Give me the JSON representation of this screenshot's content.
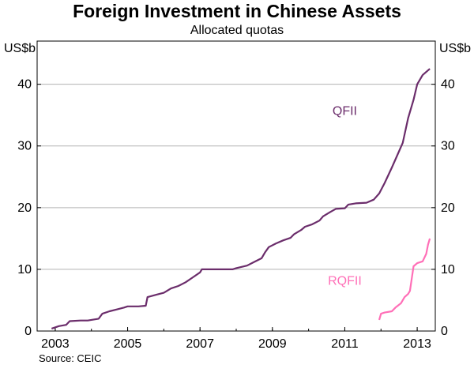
{
  "chart_data": {
    "type": "line",
    "title": "Foreign Investment in Chinese Assets",
    "subtitle": "Allocated quotas",
    "ylabel_left": "US$b",
    "ylabel_right": "US$b",
    "source": "Source: CEIC",
    "xlim": [
      2002.5,
      2013.5
    ],
    "ylim": [
      0,
      47
    ],
    "yticks": [
      0,
      10,
      20,
      30,
      40
    ],
    "xticks": [
      {
        "label": "2003",
        "value": 2003.0
      },
      {
        "label": "2005",
        "value": 2005.0
      },
      {
        "label": "2007",
        "value": 2007.0
      },
      {
        "label": "2009",
        "value": 2009.0
      },
      {
        "label": "2011",
        "value": 2011.0
      },
      {
        "label": "2013",
        "value": 2013.0
      }
    ],
    "grid": true,
    "series": [
      {
        "name": "QFII",
        "color": "#6b2d6b",
        "label_at": [
          2011.0,
          35.0
        ],
        "points": [
          [
            2002.9,
            0.4
          ],
          [
            2003.1,
            0.8
          ],
          [
            2003.3,
            1.0
          ],
          [
            2003.4,
            1.6
          ],
          [
            2003.7,
            1.7
          ],
          [
            2003.9,
            1.7
          ],
          [
            2004.0,
            1.8
          ],
          [
            2004.2,
            2.0
          ],
          [
            2004.3,
            2.8
          ],
          [
            2004.5,
            3.2
          ],
          [
            2004.7,
            3.5
          ],
          [
            2004.9,
            3.8
          ],
          [
            2005.0,
            4.0
          ],
          [
            2005.3,
            4.0
          ],
          [
            2005.5,
            4.1
          ],
          [
            2005.55,
            5.5
          ],
          [
            2005.8,
            5.9
          ],
          [
            2006.0,
            6.2
          ],
          [
            2006.2,
            6.9
          ],
          [
            2006.4,
            7.3
          ],
          [
            2006.6,
            7.9
          ],
          [
            2006.8,
            8.7
          ],
          [
            2007.0,
            9.5
          ],
          [
            2007.05,
            10.0
          ],
          [
            2007.5,
            10.0
          ],
          [
            2007.9,
            10.0
          ],
          [
            2008.0,
            10.2
          ],
          [
            2008.3,
            10.6
          ],
          [
            2008.5,
            11.2
          ],
          [
            2008.7,
            11.8
          ],
          [
            2008.8,
            12.8
          ],
          [
            2008.9,
            13.6
          ],
          [
            2009.1,
            14.2
          ],
          [
            2009.3,
            14.7
          ],
          [
            2009.5,
            15.1
          ],
          [
            2009.6,
            15.7
          ],
          [
            2009.8,
            16.4
          ],
          [
            2009.9,
            16.9
          ],
          [
            2010.1,
            17.3
          ],
          [
            2010.3,
            17.9
          ],
          [
            2010.4,
            18.6
          ],
          [
            2010.6,
            19.3
          ],
          [
            2010.75,
            19.8
          ],
          [
            2011.0,
            19.9
          ],
          [
            2011.1,
            20.5
          ],
          [
            2011.3,
            20.7
          ],
          [
            2011.6,
            20.8
          ],
          [
            2011.8,
            21.3
          ],
          [
            2011.95,
            22.3
          ],
          [
            2012.1,
            24.0
          ],
          [
            2012.3,
            26.5
          ],
          [
            2012.45,
            28.5
          ],
          [
            2012.6,
            30.5
          ],
          [
            2012.75,
            34.5
          ],
          [
            2012.9,
            37.5
          ],
          [
            2013.0,
            40.0
          ],
          [
            2013.15,
            41.5
          ],
          [
            2013.35,
            42.5
          ]
        ]
      },
      {
        "name": "RQFII",
        "color": "#ff6fb7",
        "label_at": [
          2011.0,
          7.5
        ],
        "points": [
          [
            2011.95,
            1.8
          ],
          [
            2012.0,
            2.8
          ],
          [
            2012.1,
            3.0
          ],
          [
            2012.3,
            3.2
          ],
          [
            2012.4,
            3.8
          ],
          [
            2012.55,
            4.5
          ],
          [
            2012.65,
            5.5
          ],
          [
            2012.75,
            6.0
          ],
          [
            2012.8,
            6.5
          ],
          [
            2012.85,
            8.5
          ],
          [
            2012.9,
            10.5
          ],
          [
            2013.0,
            11.0
          ],
          [
            2013.15,
            11.3
          ],
          [
            2013.25,
            12.5
          ],
          [
            2013.3,
            14.0
          ],
          [
            2013.35,
            15.0
          ]
        ]
      }
    ]
  }
}
